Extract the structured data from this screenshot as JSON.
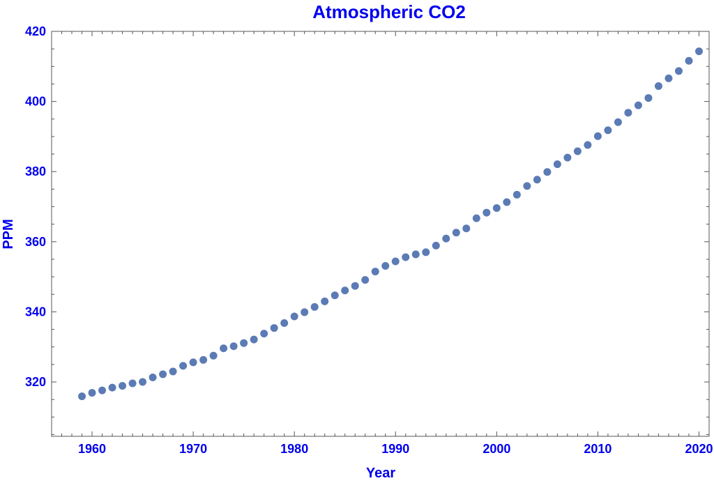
{
  "chart_data": {
    "type": "scatter",
    "title": "Atmospheric CO2",
    "xlabel": "Year",
    "ylabel": "PPM",
    "xlim": [
      1956,
      2021
    ],
    "ylim": [
      304.5,
      420
    ],
    "xticks": [
      1960,
      1970,
      1980,
      1990,
      2000,
      2010,
      2020
    ],
    "yticks": [
      320,
      340,
      360,
      380,
      400,
      420
    ],
    "grid": false,
    "colors": {
      "text": "#0000ee",
      "marker": "#5b7bb5",
      "frame": "#555555"
    },
    "x": [
      1959,
      1960,
      1961,
      1962,
      1963,
      1964,
      1965,
      1966,
      1967,
      1968,
      1969,
      1970,
      1971,
      1972,
      1973,
      1974,
      1975,
      1976,
      1977,
      1978,
      1979,
      1980,
      1981,
      1982,
      1983,
      1984,
      1985,
      1986,
      1987,
      1988,
      1989,
      1990,
      1991,
      1992,
      1993,
      1994,
      1995,
      1996,
      1997,
      1998,
      1999,
      2000,
      2001,
      2002,
      2003,
      2004,
      2005,
      2006,
      2007,
      2008,
      2009,
      2010,
      2011,
      2012,
      2013,
      2014,
      2015,
      2016,
      2017,
      2018,
      2019,
      2020
    ],
    "y": [
      315.9,
      316.9,
      317.6,
      318.4,
      318.9,
      319.6,
      320.0,
      321.3,
      322.2,
      323.0,
      324.6,
      325.6,
      326.3,
      327.5,
      329.6,
      330.2,
      331.1,
      332.1,
      333.8,
      335.4,
      336.8,
      338.7,
      339.9,
      341.4,
      343.0,
      344.7,
      346.1,
      347.4,
      349.1,
      351.5,
      353.1,
      354.4,
      355.6,
      356.4,
      357.0,
      358.9,
      360.9,
      362.6,
      363.8,
      366.7,
      368.3,
      369.6,
      371.3,
      373.4,
      375.9,
      377.7,
      379.9,
      382.1,
      384.0,
      385.8,
      387.6,
      390.1,
      391.8,
      394.1,
      396.8,
      398.9,
      401.0,
      404.4,
      406.6,
      408.7,
      411.6,
      414.3
    ]
  }
}
